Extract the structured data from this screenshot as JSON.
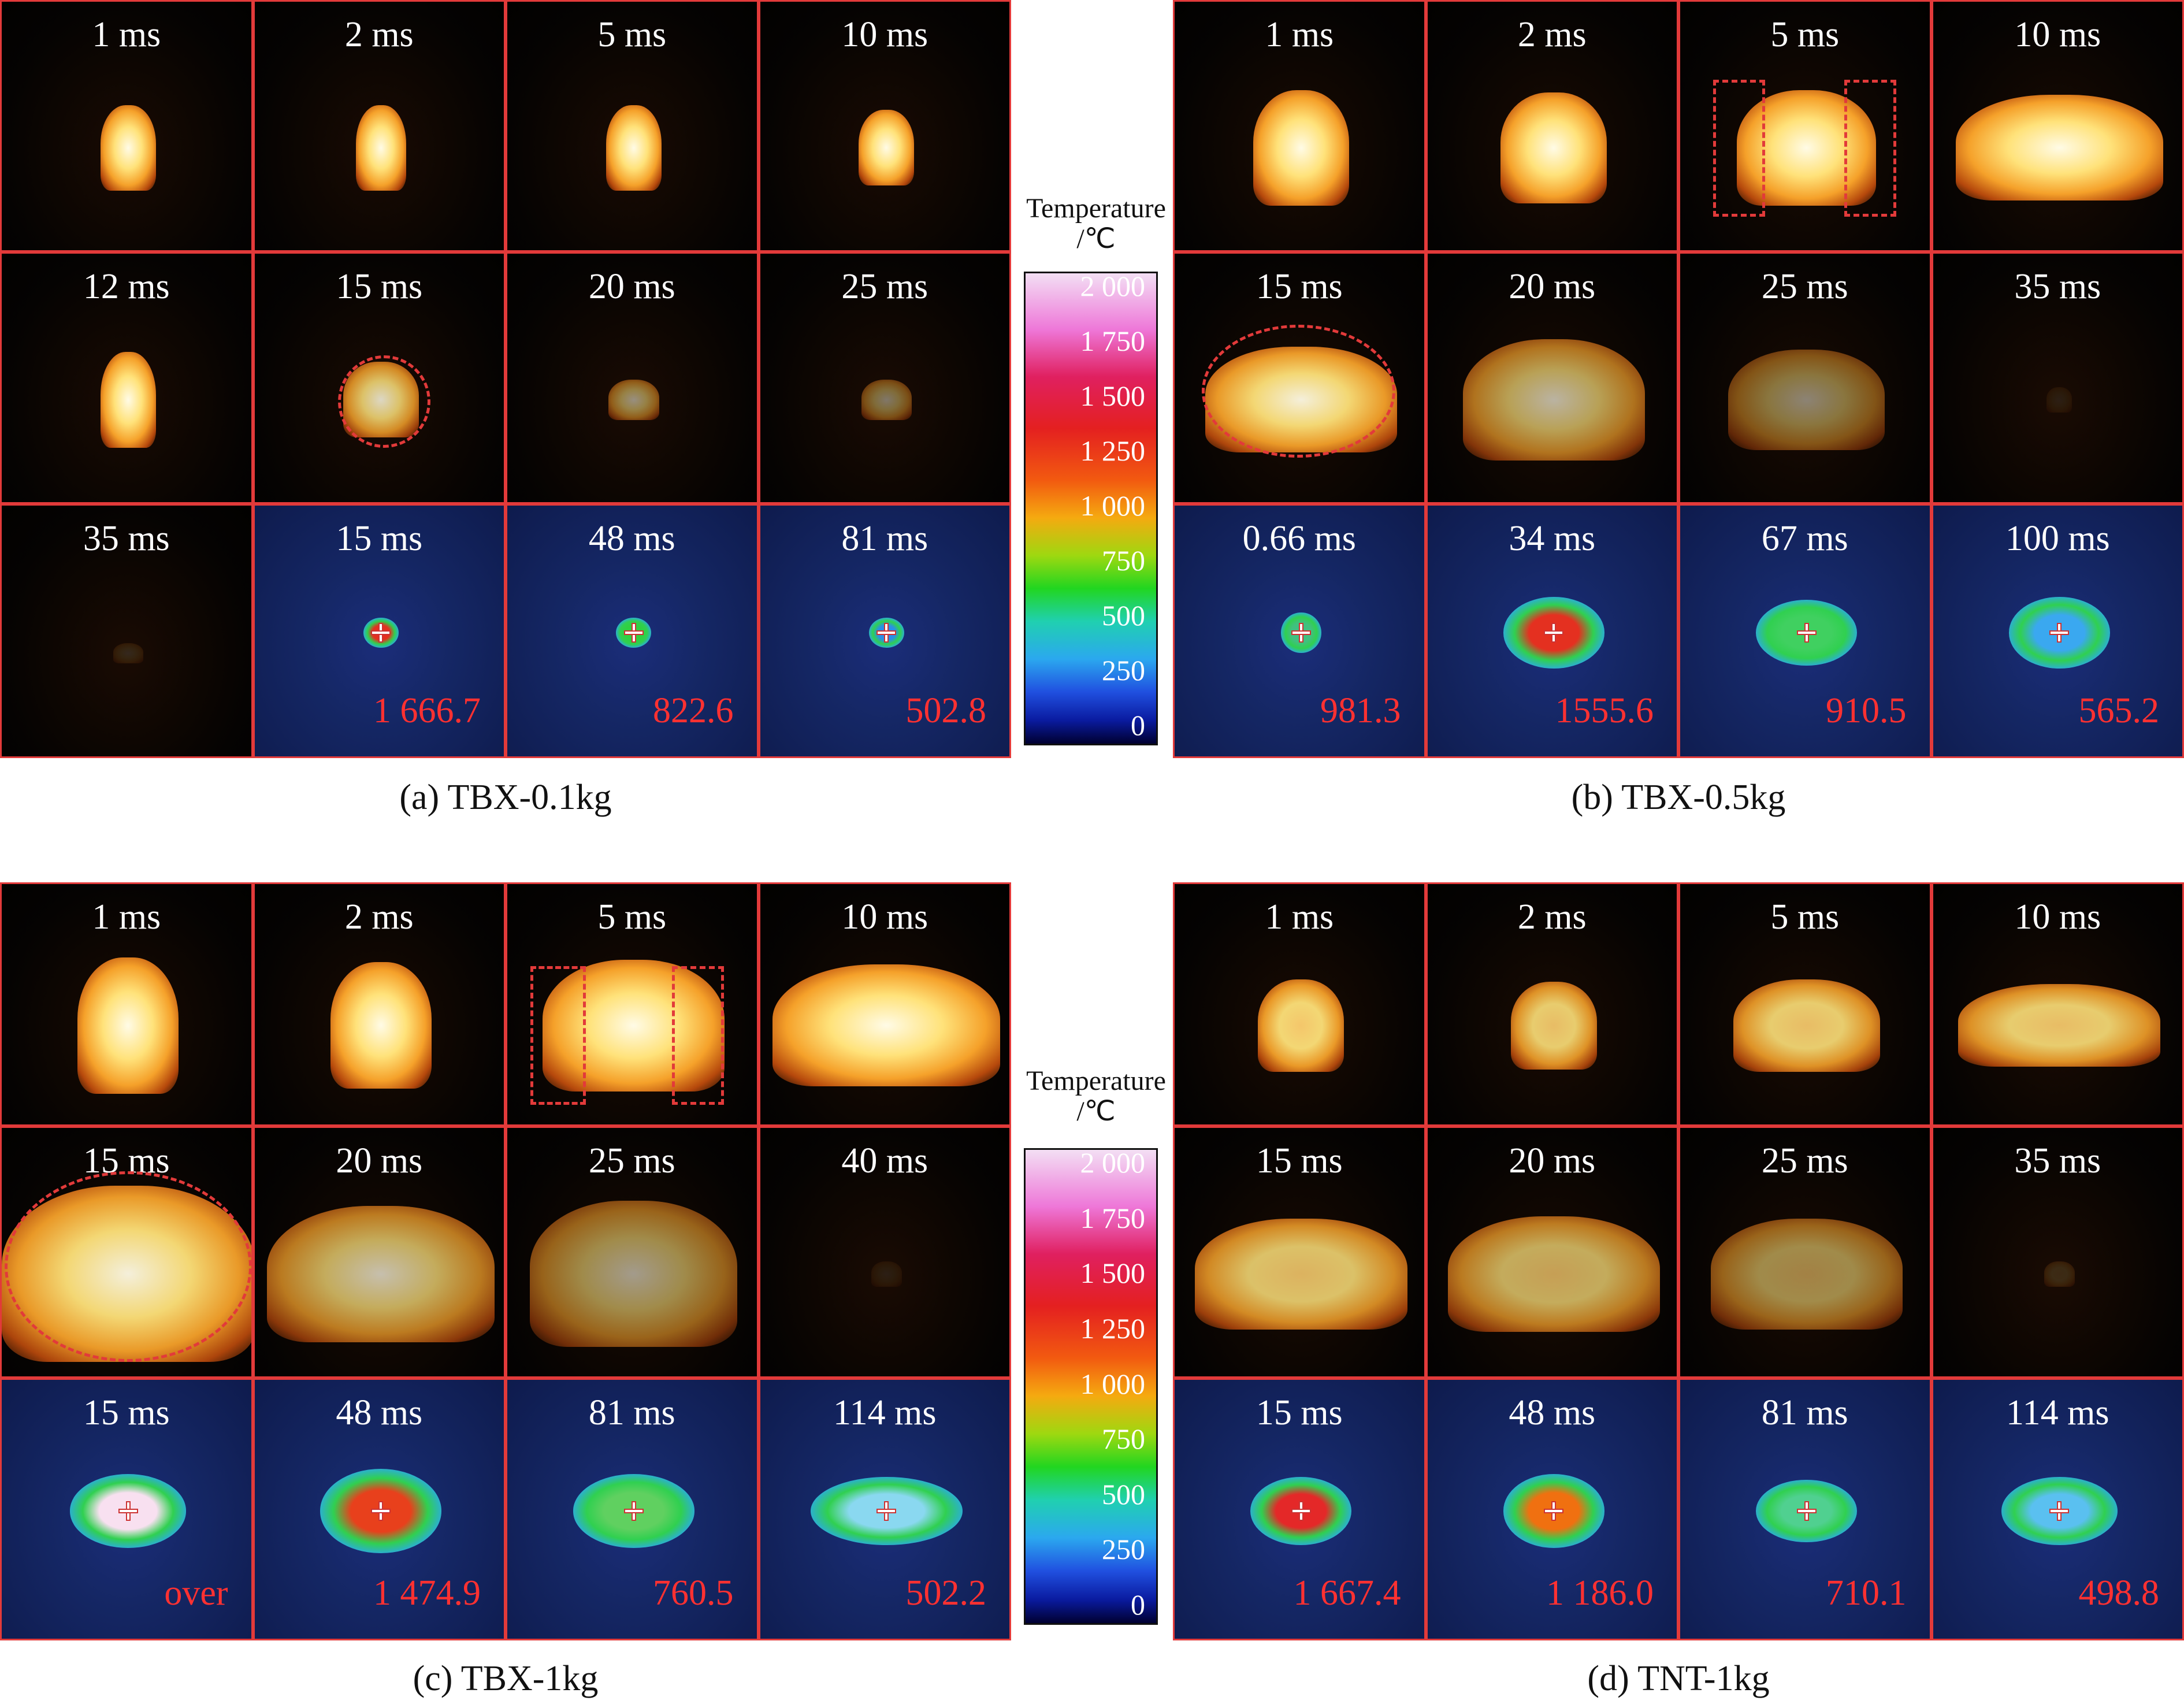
{
  "colors": {
    "frame": "#e23a3a",
    "temperature_label": "#ff3131",
    "time_label": "#ffffff"
  },
  "colorbar": {
    "title": "Temperature",
    "unit": "/℃",
    "ticks": [
      "2 000",
      "1 750",
      "1 500",
      "1 250",
      "1 000",
      "750",
      "500",
      "250",
      "0"
    ]
  },
  "panels": [
    {
      "caption": "(a) TBX-0.1kg",
      "visible_rows": [
        [
          "1 ms",
          "2 ms",
          "5 ms",
          "10 ms"
        ],
        [
          "12 ms",
          "15 ms",
          "20 ms",
          "25 ms"
        ]
      ],
      "bottom_row": [
        {
          "time": "35 ms",
          "type": "visible"
        },
        {
          "time": "15 ms",
          "type": "infrared",
          "temperature": "1 666.7"
        },
        {
          "time": "48 ms",
          "type": "infrared",
          "temperature": "822.6"
        },
        {
          "time": "81 ms",
          "type": "infrared",
          "temperature": "502.8"
        }
      ]
    },
    {
      "caption": "(b) TBX-0.5kg",
      "visible_rows": [
        [
          "1 ms",
          "2 ms",
          "5 ms",
          "10 ms"
        ],
        [
          "15 ms",
          "20 ms",
          "25 ms",
          "35 ms"
        ]
      ],
      "bottom_row": [
        {
          "time": "0.66 ms",
          "type": "infrared",
          "temperature": "981.3"
        },
        {
          "time": "34 ms",
          "type": "infrared",
          "temperature": "1555.6"
        },
        {
          "time": "67 ms",
          "type": "infrared",
          "temperature": "910.5"
        },
        {
          "time": "100 ms",
          "type": "infrared",
          "temperature": "565.2"
        }
      ]
    },
    {
      "caption": "(c) TBX-1kg",
      "visible_rows": [
        [
          "1 ms",
          "2 ms",
          "5 ms",
          "10 ms"
        ],
        [
          "15 ms",
          "20 ms",
          "25 ms",
          "40 ms"
        ]
      ],
      "bottom_row": [
        {
          "time": "15 ms",
          "type": "infrared",
          "temperature": "over"
        },
        {
          "time": "48 ms",
          "type": "infrared",
          "temperature": "1 474.9"
        },
        {
          "time": "81 ms",
          "type": "infrared",
          "temperature": "760.5"
        },
        {
          "time": "114 ms",
          "type": "infrared",
          "temperature": "502.2"
        }
      ]
    },
    {
      "caption": "(d) TNT-1kg",
      "visible_rows": [
        [
          "1 ms",
          "2 ms",
          "5 ms",
          "10 ms"
        ],
        [
          "15 ms",
          "20 ms",
          "25 ms",
          "35 ms"
        ]
      ],
      "bottom_row": [
        {
          "time": "15 ms",
          "type": "infrared",
          "temperature": "1 667.4"
        },
        {
          "time": "48 ms",
          "type": "infrared",
          "temperature": "1 186.0"
        },
        {
          "time": "81 ms",
          "type": "infrared",
          "temperature": "710.1"
        },
        {
          "time": "114 ms",
          "type": "infrared",
          "temperature": "498.8"
        }
      ]
    }
  ]
}
